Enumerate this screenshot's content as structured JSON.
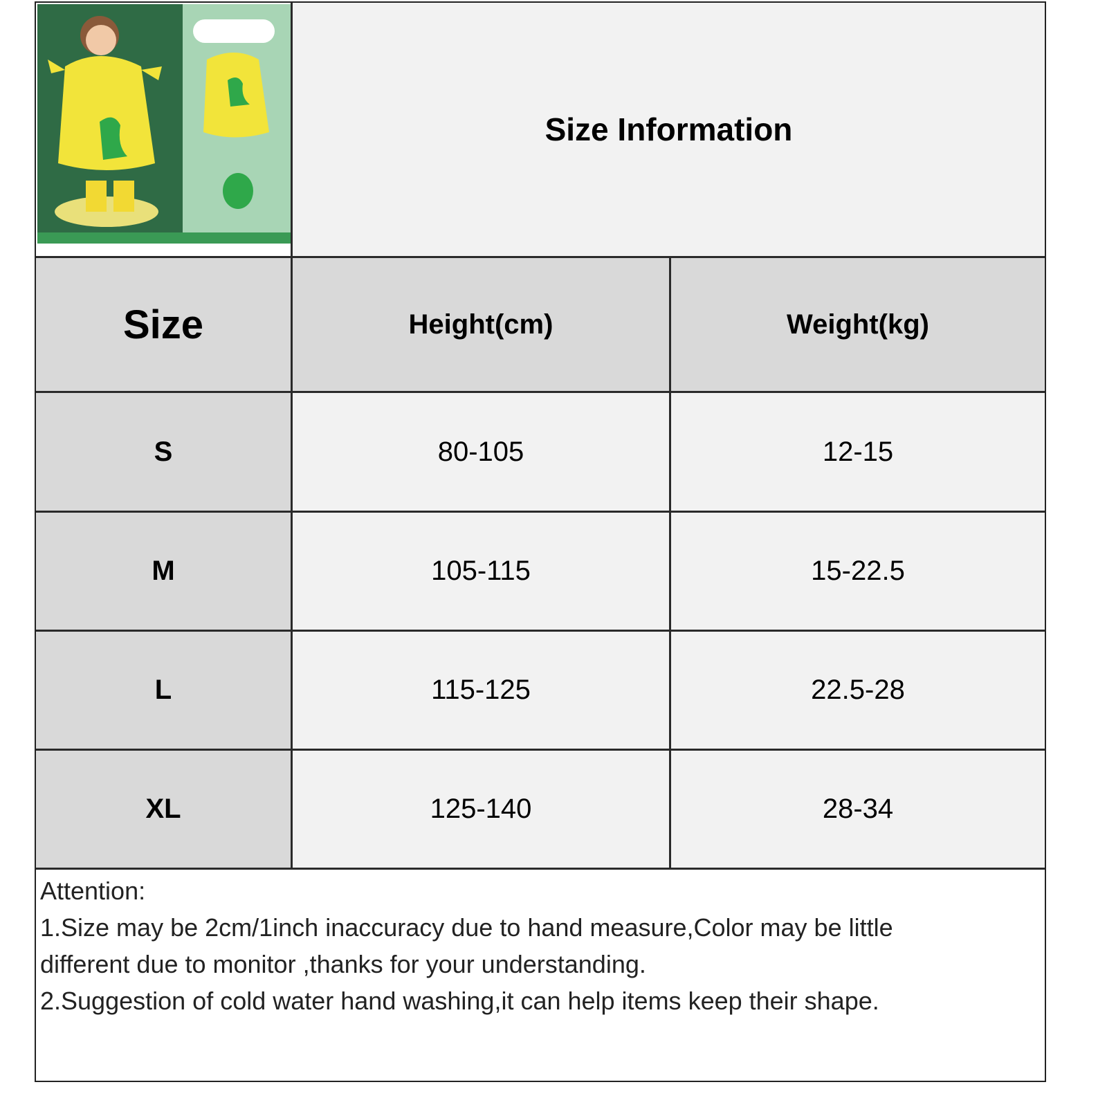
{
  "title": "Size Information",
  "product_image": {
    "alt": "Kids yellow dinosaur raincoat",
    "colors": {
      "dark_green": "#2f6b45",
      "mint": "#a8d5b5",
      "yellow": "#f2e43a",
      "dino_green": "#2fa84a"
    }
  },
  "table": {
    "headers": [
      "Size",
      "Height(cm)",
      "Weight(kg)"
    ],
    "rows": [
      {
        "size": "S",
        "height": "80-105",
        "weight": "12-15"
      },
      {
        "size": "M",
        "height": "105-115",
        "weight": "15-22.5"
      },
      {
        "size": "L",
        "height": "115-125",
        "weight": "22.5-28"
      },
      {
        "size": "XL",
        "height": "125-140",
        "weight": "28-34"
      }
    ]
  },
  "notes": {
    "heading": "Attention:",
    "line1a": "1.Size may be 2cm/1inch inaccuracy due to hand measure,Color may be little",
    "line1b": "different due to monitor ,thanks for your understanding.",
    "line2": "2.Suggestion of cold water hand washing,it can help items keep their shape."
  },
  "colors": {
    "header_bg": "#d9d9d9",
    "cell_bg": "#f2f2f2",
    "border": "#2a2a2a"
  }
}
